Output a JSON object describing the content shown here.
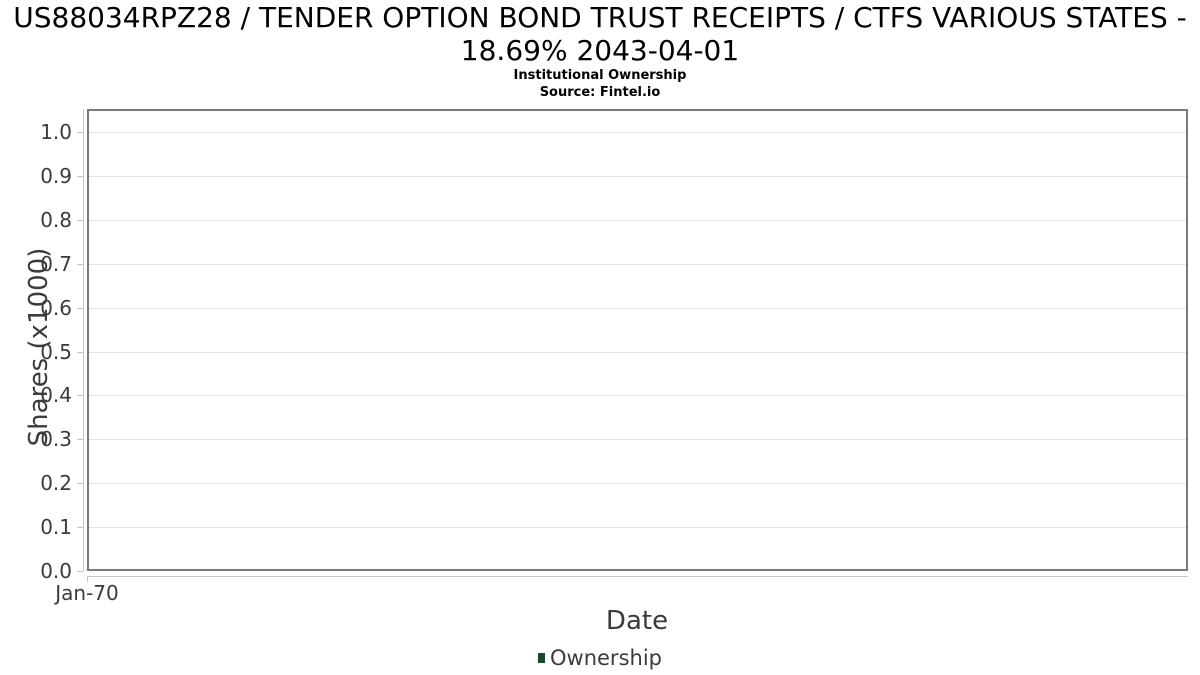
{
  "header": {
    "title_line1": "US88034RPZ28 / TENDER OPTION BOND TRUST RECEIPTS / CTFS VARIOUS STATES -",
    "title_line2": "18.69% 2043-04-01",
    "subtitle": "Institutional Ownership",
    "source": "Source: Fintel.io"
  },
  "chart_data": {
    "type": "line",
    "title": "US88034RPZ28 / TENDER OPTION BOND TRUST RECEIPTS / CTFS VARIOUS STATES - 18.69% 2043-04-01",
    "subtitle": "Institutional Ownership",
    "source": "Source: Fintel.io",
    "xlabel": "Date",
    "ylabel": "Shares (x1000)",
    "ylim": [
      0.0,
      1.05
    ],
    "yticks": [
      "0.0",
      "0.1",
      "0.2",
      "0.3",
      "0.4",
      "0.5",
      "0.6",
      "0.7",
      "0.8",
      "0.9",
      "1.0"
    ],
    "xticks": [
      "Jan-70"
    ],
    "grid": "horizontal",
    "legend_position": "bottom",
    "series": [
      {
        "name": "Ownership",
        "color": "#1d4a26",
        "x": [],
        "values": []
      }
    ]
  },
  "legend": {
    "label": "Ownership",
    "marker_color": "#1d4a26"
  },
  "colors": {
    "plot_border": "#7a7a7a",
    "gridline": "#e3e3e3",
    "axis_line": "#c6c6c6",
    "tick_text": "#3b3b3b",
    "title_text": "#000000",
    "legend_marker": "#1d4a26"
  }
}
